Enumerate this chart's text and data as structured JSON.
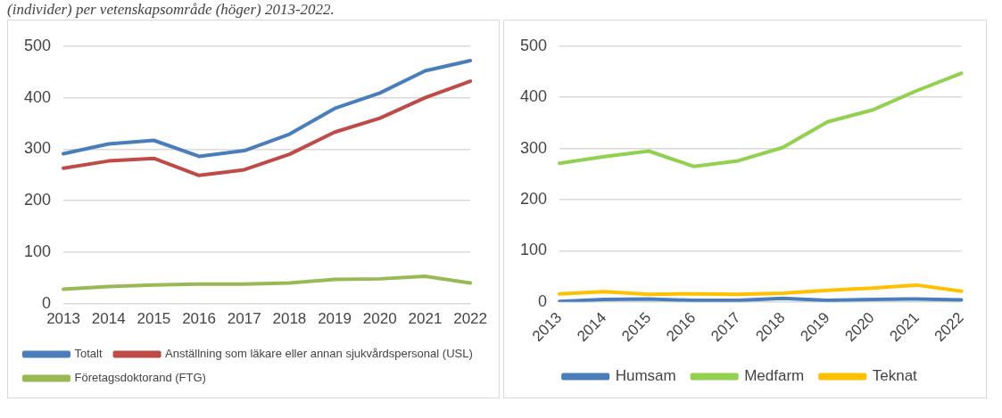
{
  "chart_data": [
    {
      "type": "line",
      "annotations": [
        "(individer) per vetenskapsområde (höger) 2013-2022."
      ],
      "categories": [
        "2013",
        "2014",
        "2015",
        "2016",
        "2017",
        "2018",
        "2019",
        "2020",
        "2021",
        "2022"
      ],
      "ylim": [
        0,
        500
      ],
      "yticks": [
        0,
        100,
        200,
        300,
        400,
        500
      ],
      "grid": "y",
      "legend": "bottom",
      "marker": "none",
      "series": [
        {
          "name": "Totalt",
          "color": "#4a7ebb",
          "values": [
            291,
            310,
            317,
            286,
            297,
            329,
            379,
            409,
            452,
            472
          ]
        },
        {
          "name": "Anställning som läkare eller annan sjukvårdspersonal (USL)",
          "color": "#be4b48",
          "values": [
            263,
            277,
            282,
            249,
            260,
            290,
            333,
            360,
            400,
            432
          ]
        },
        {
          "name": "Företagsdoktorand (FTG)",
          "color": "#98b954",
          "values": [
            28,
            33,
            36,
            38,
            38,
            40,
            47,
            48,
            53,
            40
          ]
        }
      ]
    },
    {
      "type": "line",
      "categories": [
        "2013",
        "2014",
        "2015",
        "2016",
        "2017",
        "2018",
        "2019",
        "2020",
        "2021",
        "2022"
      ],
      "ylim": [
        0,
        500
      ],
      "yticks": [
        0,
        100,
        200,
        300,
        400,
        500
      ],
      "grid": "y",
      "legend": "bottom",
      "marker": "none",
      "series": [
        {
          "name": "Humsam",
          "color": "#4a7ebb",
          "values": [
            1,
            5,
            6,
            3,
            3,
            7,
            3,
            5,
            6,
            4
          ]
        },
        {
          "name": "Medfarm",
          "color": "#92d050",
          "values": [
            271,
            284,
            295,
            265,
            276,
            302,
            352,
            375,
            413,
            447
          ]
        },
        {
          "name": "Teknat",
          "color": "#ffc000",
          "values": [
            16,
            20,
            15,
            16,
            15,
            17,
            23,
            27,
            33,
            21
          ]
        }
      ]
    }
  ]
}
